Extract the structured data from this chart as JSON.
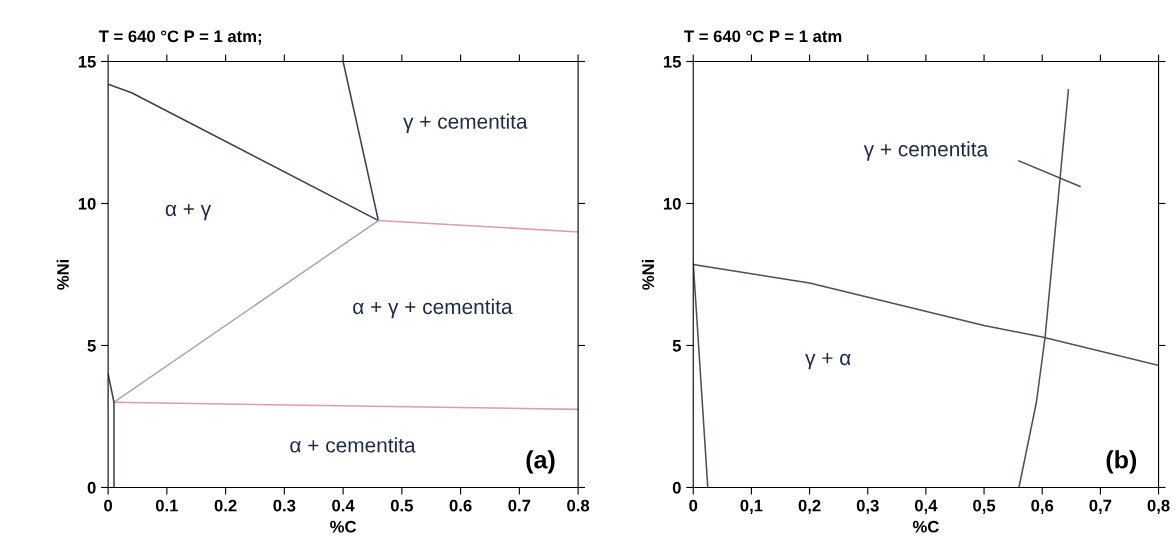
{
  "chart_data": [
    {
      "type": "line",
      "title": "T = 640 °C P = 1 atm;",
      "xlabel": "%C",
      "ylabel": "%Ni",
      "xlim": [
        0,
        0.8
      ],
      "ylim": [
        0,
        15
      ],
      "xticks": [
        0,
        0.1,
        0.2,
        0.3,
        0.4,
        0.5,
        0.6,
        0.7,
        0.8
      ],
      "yticks": [
        0,
        5,
        10,
        15
      ],
      "grid": false,
      "legend": false,
      "series": [
        {
          "color": "#3a3f55",
          "x": [
            0,
            0.04,
            0.46
          ],
          "values": [
            14.2,
            13.9,
            9.4
          ]
        },
        {
          "color": "#3a3f55",
          "x": [
            0.4,
            0.46
          ],
          "values": [
            15,
            9.4
          ]
        },
        {
          "color": "#d9a0aa",
          "x": [
            0.46,
            0.8
          ],
          "values": [
            9.4,
            9.0
          ]
        },
        {
          "color": "#a8a8b4",
          "x": [
            0.46,
            0.01
          ],
          "values": [
            9.4,
            3.0
          ]
        },
        {
          "color": "#d9a0aa",
          "x": [
            0.01,
            0.8
          ],
          "values": [
            3.0,
            2.75
          ]
        },
        {
          "color": "#3a3f55",
          "x": [
            0,
            0.01,
            0.01
          ],
          "values": [
            4.0,
            3.0,
            0
          ]
        }
      ],
      "annotations": [
        "γ + cementita",
        "α + γ",
        "α + γ + cementita",
        "α + cementita",
        "(a)"
      ]
    },
    {
      "type": "line",
      "title": "T = 640 °C P = 1 atm",
      "xlabel": "%C",
      "ylabel": "%Ni",
      "xlim": [
        0,
        0.8
      ],
      "ylim": [
        0,
        15
      ],
      "xticks": [
        0,
        {
          "value": 0.1,
          "label": "0,1"
        },
        {
          "value": 0.2,
          "label": "0,2"
        },
        {
          "value": 0.3,
          "label": "0,3"
        },
        {
          "value": 0.4,
          "label": "0,4"
        },
        {
          "value": 0.5,
          "label": "0,5"
        },
        {
          "value": 0.6,
          "label": "0,6"
        },
        {
          "value": 0.7,
          "label": "0,7"
        },
        {
          "value": 0.8,
          "label": "0,8"
        }
      ],
      "yticks": [
        0,
        5,
        10,
        15
      ],
      "grid": false,
      "legend": false,
      "series": [
        {
          "color": "#4a4f60",
          "x": [
            0,
            0.2,
            0.5,
            0.6,
            0.8
          ],
          "values": [
            7.85,
            7.2,
            5.7,
            5.3,
            4.3
          ]
        },
        {
          "color": "#4a4f60",
          "x": [
            0,
            0.025
          ],
          "values": [
            7.9,
            0
          ]
        },
        {
          "color": "#4a4f60",
          "x": [
            0.56,
            0.59,
            0.605,
            0.645
          ],
          "values": [
            0,
            3.0,
            5.3,
            14.0
          ]
        },
        {
          "color": "#4a4f60",
          "x": [
            0.56,
            0.665
          ],
          "values": [
            11.5,
            10.6
          ]
        }
      ],
      "annotations": [
        "γ + cementita",
        "γ + α",
        "(b)"
      ]
    }
  ]
}
